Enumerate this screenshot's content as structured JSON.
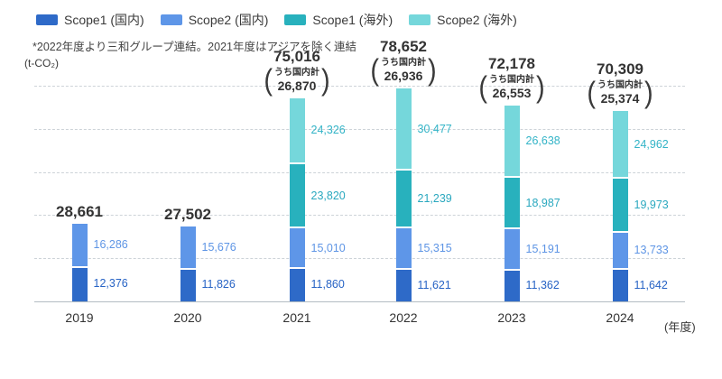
{
  "note": "*2022年度より三和グループ連結。2021年度はアジアを除く連結",
  "unit_label": "(t-CO₂)",
  "x_axis_unit": "(年度)",
  "legend": [
    {
      "label": "Scope1 (国内)",
      "color": "#2e6ac8"
    },
    {
      "label": "Scope2 (国内)",
      "color": "#5e96e8"
    },
    {
      "label": "Scope1 (海外)",
      "color": "#28b1bd"
    },
    {
      "label": "Scope2 (海外)",
      "color": "#75d7db"
    }
  ],
  "chart_data": {
    "type": "bar",
    "stacked": true,
    "title": "",
    "xlabel": "(年度)",
    "ylabel": "(t-CO₂)",
    "grid": "dashed horizontal, unlabeled",
    "legend_position": "top-left",
    "categories": [
      "2019",
      "2020",
      "2021",
      "2022",
      "2023",
      "2024"
    ],
    "series": [
      {
        "name": "Scope1 (国内)",
        "color": "#2e6ac8",
        "label_color": "#2763c5",
        "values": [
          12376,
          11826,
          11860,
          11621,
          11362,
          11642
        ]
      },
      {
        "name": "Scope2 (国内)",
        "color": "#5e96e8",
        "label_color": "#5e95e5",
        "values": [
          16286,
          15676,
          15010,
          15315,
          15191,
          13733
        ]
      },
      {
        "name": "Scope1 (海外)",
        "color": "#28b1bd",
        "label_color": "#2aa8bf",
        "values": [
          null,
          null,
          23820,
          21239,
          18987,
          19973
        ]
      },
      {
        "name": "Scope2 (海外)",
        "color": "#75d7db",
        "label_color": "#33b4c7",
        "values": [
          null,
          null,
          24326,
          30477,
          26638,
          24962
        ]
      }
    ],
    "totals": [
      28661,
      27502,
      75016,
      78652,
      72178,
      70309
    ],
    "domestic_subtotal_label": "うち国内計",
    "domestic_subtotals": [
      null,
      null,
      26870,
      26936,
      26553,
      25374
    ]
  }
}
